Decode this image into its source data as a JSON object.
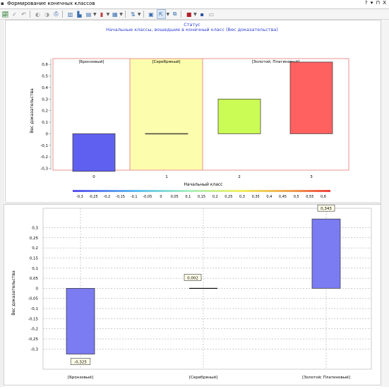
{
  "window": {
    "title": "Формирование конечных классов",
    "controls": "? ▾ ⊓ X"
  },
  "toolbar": {
    "icons": [
      "chart-wizard-icon",
      "check-icon",
      "undo-icon",
      "series-icon",
      "series2-icon",
      "print-icon",
      "gridlines-icon",
      "axes-icon",
      "layout-icon",
      "chart-type-icon",
      "palette-icon",
      "sort-icon",
      "table-icon",
      "pointer-icon",
      "export-icon",
      "color-icon",
      "save-icon",
      "copy-icon"
    ]
  },
  "colors": {
    "bronze": "#6060f0",
    "silver": "#fdfdae",
    "gold_bar": "#cbfc55",
    "platinum_bar": "#ff6060",
    "frame": "#e89090",
    "title": "#2f3fd6",
    "bottom_bar": "#7b7bf2"
  },
  "top_chart": {
    "header": "Статус",
    "subtitle": "Начальные классы, вошедшие в конечный класс (Вес доказательства)",
    "ylabel": "Вес доказательства",
    "xlabel": "Начальный класс",
    "groups": [
      "[Бронзовый]",
      "[Серебряный]",
      "[Золотой; Платиновый]"
    ],
    "x_ticks": [
      "0",
      "1",
      "2",
      "3"
    ],
    "y_ticks": [
      "0,6",
      "0,5",
      "0,4",
      "0,3",
      "0,2",
      "0,1",
      "0",
      "-0,1",
      "-0,2",
      "-0,3"
    ],
    "legend_ticks": [
      "-0,3",
      "-0,25",
      "-0,2",
      "-0,15",
      "-0,1",
      "-0,05",
      "0",
      "0,05",
      "0,1",
      "0,15",
      "0,2",
      "0,25",
      "0,3",
      "0,35",
      "0,4",
      "0,45",
      "0,5",
      "0,55",
      "0,6"
    ]
  },
  "bottom_chart": {
    "ylabel": "Вес доказательства",
    "y_ticks": [
      "0,3",
      "0,25",
      "0,2",
      "0,15",
      "0,1",
      "0,05",
      "0",
      "-0,05",
      "-0,1",
      "-0,15",
      "-0,2",
      "-0,25",
      "-0,3"
    ],
    "labels": [
      "-0,325",
      "0,002",
      "0,343"
    ]
  },
  "chart_data": [
    {
      "type": "bar",
      "title": "Статус",
      "subtitle": "Начальные классы, вошедшие в конечный класс (Вес доказательства)",
      "xlabel": "Начальный класс",
      "ylabel": "Вес доказательства",
      "categories": [
        "0",
        "1",
        "2",
        "3"
      ],
      "values": [
        -0.325,
        0.002,
        0.3,
        0.62
      ],
      "ylim": [
        -0.32,
        0.67
      ],
      "groups": [
        {
          "label": "[Бронзовый]",
          "categories": [
            "0"
          ]
        },
        {
          "label": "[Серебряный]",
          "categories": [
            "1"
          ]
        },
        {
          "label": "[Золотой; Платиновый]",
          "categories": [
            "2",
            "3"
          ]
        }
      ],
      "color_scale": [
        -0.3,
        0.6
      ],
      "grid": false
    },
    {
      "type": "bar",
      "xlabel": "",
      "ylabel": "Вес доказательства",
      "categories": [
        "[Бронзовый]",
        "[Серебряный]",
        "[Золотой; Платиновый]"
      ],
      "values": [
        -0.325,
        0.002,
        0.343
      ],
      "data_labels": [
        "-0,325",
        "0,002",
        "0,343"
      ],
      "ylim": [
        -0.35,
        0.36
      ],
      "grid": true
    }
  ]
}
